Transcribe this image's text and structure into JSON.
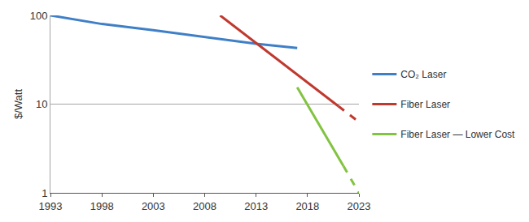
{
  "chart_data": {
    "type": "line",
    "y_label": "$/Watt",
    "log": "y",
    "grid": true,
    "legend": "right",
    "xlim": [
      1993,
      2023
    ],
    "xticks": [
      1993,
      1998,
      2003,
      2008,
      2013,
      2018,
      2023
    ],
    "ylim": [
      1,
      100
    ],
    "yticks": [
      1,
      10,
      100
    ],
    "series": [
      {
        "name": "CO₂ Laser",
        "color": "#3f7fc7",
        "line_style": "solid",
        "x": [
          1993,
          1998,
          2003,
          2008,
          2013,
          2017
        ],
        "values": [
          100,
          80,
          68,
          57,
          48,
          43
        ]
      },
      {
        "name": "Fiber Laser",
        "color": "#c0392f",
        "line_style": "solid",
        "x": [
          2009.5,
          2013,
          2018,
          2021
        ],
        "values": [
          100,
          49,
          17.5,
          9.5
        ]
      },
      {
        "name": "Fiber Laser",
        "color": "#c0392f",
        "line_style": "dashed",
        "x": [
          2021,
          2023
        ],
        "values": [
          9.5,
          6.3
        ]
      },
      {
        "name": "Fiber Laser — Lower Cost",
        "color": "#82c341",
        "line_style": "solid",
        "x": [
          2017,
          2021.5
        ],
        "values": [
          15.5,
          2.0
        ]
      },
      {
        "name": "Fiber Laser — Lower Cost",
        "color": "#82c341",
        "line_style": "dashed",
        "x": [
          2021.5,
          2023
        ],
        "values": [
          2.0,
          1.0
        ]
      }
    ]
  }
}
